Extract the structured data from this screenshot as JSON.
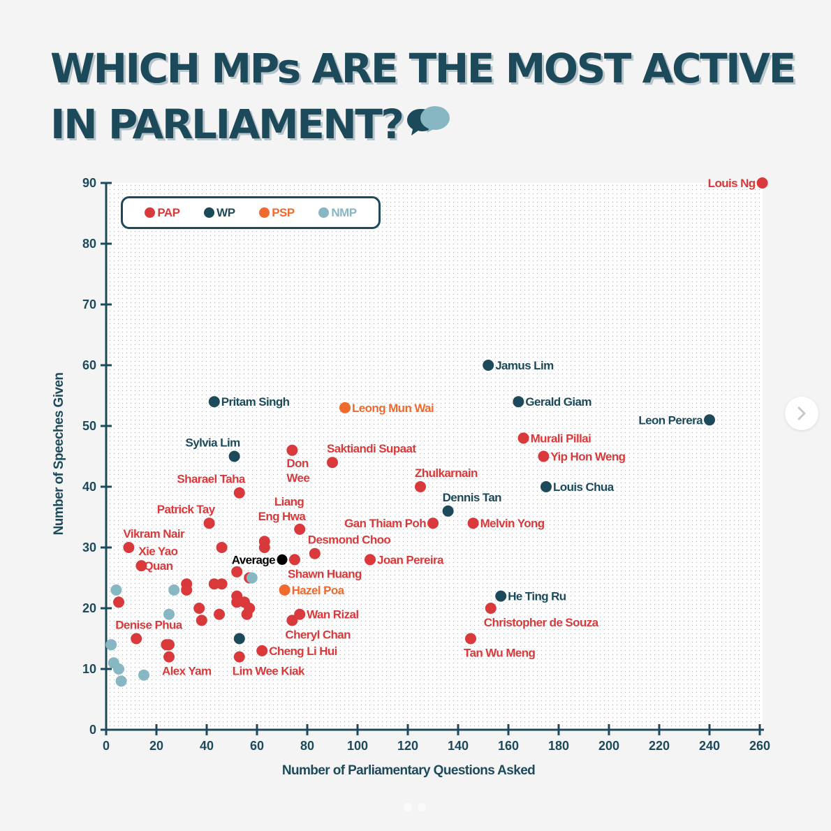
{
  "title": {
    "line1": "WHICH MPs ARE THE MOST ACTIVE",
    "line2": "IN PARLIAMENT?",
    "icon": "speech-bubbles-icon"
  },
  "colors": {
    "PAP": "#d9393a",
    "WP": "#1d4a5a",
    "PSP": "#f06a2e",
    "NMP": "#86b7c2",
    "Average": "#000000",
    "axis": "#1d4a5a",
    "grid": "#b9b9b9",
    "plot_bg": "#ffffff"
  },
  "navigation": {
    "next_icon": "chevron-right-icon",
    "carousel_pages": 2
  },
  "chart_data": {
    "type": "scatter",
    "title": "WHICH MPs ARE THE MOST ACTIVE IN PARLIAMENT?",
    "xlabel": "Number of Parliamentary Questions Asked",
    "ylabel": "Number of Speeches Given",
    "xlim": [
      0,
      260
    ],
    "ylim": [
      0,
      90
    ],
    "xticks": [
      0,
      20,
      40,
      60,
      80,
      100,
      120,
      140,
      160,
      180,
      200,
      220,
      240,
      260
    ],
    "yticks": [
      0,
      10,
      20,
      30,
      40,
      50,
      60,
      70,
      80,
      90
    ],
    "grid": true,
    "legend": {
      "placement": "top-left",
      "entries": [
        "PAP",
        "WP",
        "PSP",
        "NMP"
      ]
    },
    "points": [
      {
        "name": "Louis Ng",
        "party": "PAP",
        "x": 261,
        "y": 90,
        "label": "Louis Ng",
        "label_side": "left"
      },
      {
        "name": "Jamus Lim",
        "party": "WP",
        "x": 152,
        "y": 60,
        "label": "Jamus Lim",
        "label_side": "right"
      },
      {
        "name": "Gerald Giam",
        "party": "WP",
        "x": 164,
        "y": 54,
        "label": "Gerald Giam",
        "label_side": "right"
      },
      {
        "name": "Leon Perera",
        "party": "WP",
        "x": 240,
        "y": 51,
        "label": "Leon Perera",
        "label_side": "left"
      },
      {
        "name": "Murali Pillai",
        "party": "PAP",
        "x": 166,
        "y": 48,
        "label": "Murali Pillai",
        "label_side": "right"
      },
      {
        "name": "Yip Hon Weng",
        "party": "PAP",
        "x": 174,
        "y": 45,
        "label": "Yip Hon Weng",
        "label_side": "right"
      },
      {
        "name": "Louis Chua",
        "party": "WP",
        "x": 175,
        "y": 40,
        "label": "Louis Chua",
        "label_side": "right"
      },
      {
        "name": "Zhulkarnain",
        "party": "PAP",
        "x": 125,
        "y": 40,
        "label": "Zhulkarnain",
        "label_side": "above-right"
      },
      {
        "name": "Dennis Tan",
        "party": "WP",
        "x": 136,
        "y": 36,
        "label": "Dennis Tan",
        "label_side": "above-right"
      },
      {
        "name": "Gan Thiam Poh",
        "party": "PAP",
        "x": 130,
        "y": 34,
        "label": "Gan Thiam Poh",
        "label_side": "left"
      },
      {
        "name": "Melvin Yong",
        "party": "PAP",
        "x": 146,
        "y": 34,
        "label": "Melvin Yong",
        "label_side": "right"
      },
      {
        "name": "Joan Pereira",
        "party": "PAP",
        "x": 105,
        "y": 28,
        "label": "Joan Pereira",
        "label_side": "right"
      },
      {
        "name": "He Ting Ru",
        "party": "WP",
        "x": 157,
        "y": 22,
        "label": "He Ting Ru",
        "label_side": "right"
      },
      {
        "name": "Christopher de Souza",
        "party": "PAP",
        "x": 153,
        "y": 20,
        "label": "Christopher de Souza",
        "label_side": "below-right"
      },
      {
        "name": "Tan Wu Meng",
        "party": "PAP",
        "x": 145,
        "y": 15,
        "label": "Tan Wu Meng",
        "label_side": "below-right"
      },
      {
        "name": "Pritam Singh",
        "party": "WP",
        "x": 43,
        "y": 54,
        "label": "Pritam Singh",
        "label_side": "right"
      },
      {
        "name": "Leong Mun Wai",
        "party": "PSP",
        "x": 95,
        "y": 53,
        "label": "Leong Mun Wai",
        "label_side": "right"
      },
      {
        "name": "Sylvia Lim",
        "party": "WP",
        "x": 51,
        "y": 45,
        "label": "Sylvia Lim",
        "label_side": "above-left"
      },
      {
        "name": "Don Wee",
        "party": "PAP",
        "x": 74,
        "y": 46,
        "label": "Don Wee",
        "label_side": "below"
      },
      {
        "name": "Saktiandi Supaat",
        "party": "PAP",
        "x": 90,
        "y": 44,
        "label": "Saktiandi Supaat",
        "label_side": "above-right"
      },
      {
        "name": "Sharael Taha",
        "party": "PAP",
        "x": 53,
        "y": 39,
        "label": "Sharael Taha",
        "label_side": "above-left"
      },
      {
        "name": "Patrick Tay",
        "party": "PAP",
        "x": 41,
        "y": 34,
        "label": "Patrick Tay",
        "label_side": "above-left"
      },
      {
        "name": "Liang Eng Hwa",
        "party": "PAP",
        "x": 77,
        "y": 33,
        "label": "Liang Eng Hwa",
        "label_side": "above-left"
      },
      {
        "name": "Desmond Choo",
        "party": "PAP",
        "x": 83,
        "y": 29,
        "label": "Desmond Choo",
        "label_side": "above"
      },
      {
        "name": "Shawn Huang",
        "party": "PAP",
        "x": 75,
        "y": 28,
        "label": "Shawn Huang",
        "label_side": "below-right"
      },
      {
        "name": "Hazel Poa",
        "party": "PSP",
        "x": 71,
        "y": 23,
        "label": "Hazel Poa",
        "label_side": "right"
      },
      {
        "name": "Wan Rizal",
        "party": "PAP",
        "x": 77,
        "y": 19,
        "label": "Wan Rizal",
        "label_side": "right"
      },
      {
        "name": "Cheryl Chan",
        "party": "PAP",
        "x": 74,
        "y": 18,
        "label": "Cheryl Chan",
        "label_side": "below-right"
      },
      {
        "name": "Cheng Li Hui",
        "party": "PAP",
        "x": 62,
        "y": 13,
        "label": "Cheng Li Hui",
        "label_side": "right"
      },
      {
        "name": "Lim Wee Kiak",
        "party": "PAP",
        "x": 53,
        "y": 12,
        "label": "Lim Wee Kiak",
        "label_side": "below-right"
      },
      {
        "name": "Vikram Nair",
        "party": "PAP",
        "x": 9,
        "y": 30,
        "label": "Vikram Nair",
        "label_side": "above-right"
      },
      {
        "name": "Xie Yao Quan",
        "party": "PAP",
        "x": 14,
        "y": 27,
        "label": "Xie Yao Quan",
        "label_side": "right-2line"
      },
      {
        "name": "Denise Phua",
        "party": "PAP",
        "x": 12,
        "y": 15,
        "label": "Denise Phua",
        "label_side": "above-right"
      },
      {
        "name": "Alex Yam",
        "party": "PAP",
        "x": 25,
        "y": 12,
        "label": "Alex Yam",
        "label_side": "below-right"
      },
      {
        "name": "Average",
        "party": "Average",
        "x": 70,
        "y": 28,
        "label": "Average",
        "label_side": "left"
      },
      {
        "party": "PAP",
        "x": 46,
        "y": 30
      },
      {
        "party": "PAP",
        "x": 63,
        "y": 31
      },
      {
        "party": "PAP",
        "x": 63,
        "y": 30
      },
      {
        "party": "PAP",
        "x": 52,
        "y": 26
      },
      {
        "party": "PAP",
        "x": 57,
        "y": 25
      },
      {
        "party": "PAP",
        "x": 32,
        "y": 24
      },
      {
        "party": "PAP",
        "x": 32,
        "y": 23
      },
      {
        "party": "PAP",
        "x": 43,
        "y": 24
      },
      {
        "party": "PAP",
        "x": 46,
        "y": 24
      },
      {
        "party": "PAP",
        "x": 5,
        "y": 21
      },
      {
        "party": "PAP",
        "x": 37,
        "y": 20
      },
      {
        "party": "PAP",
        "x": 38,
        "y": 18
      },
      {
        "party": "PAP",
        "x": 45,
        "y": 19
      },
      {
        "party": "PAP",
        "x": 52,
        "y": 22
      },
      {
        "party": "PAP",
        "x": 52,
        "y": 21
      },
      {
        "party": "PAP",
        "x": 55,
        "y": 21
      },
      {
        "party": "PAP",
        "x": 57,
        "y": 20
      },
      {
        "party": "PAP",
        "x": 56,
        "y": 19
      },
      {
        "party": "PAP",
        "x": 24,
        "y": 14
      },
      {
        "party": "PAP",
        "x": 25,
        "y": 14
      },
      {
        "party": "NMP",
        "x": 58,
        "y": 25
      },
      {
        "party": "NMP",
        "x": 4,
        "y": 23
      },
      {
        "party": "NMP",
        "x": 27,
        "y": 23
      },
      {
        "party": "NMP",
        "x": 25,
        "y": 19
      },
      {
        "party": "NMP",
        "x": 2,
        "y": 14
      },
      {
        "party": "NMP",
        "x": 3,
        "y": 11
      },
      {
        "party": "NMP",
        "x": 5,
        "y": 10
      },
      {
        "party": "NMP",
        "x": 6,
        "y": 8
      },
      {
        "party": "NMP",
        "x": 15,
        "y": 9
      },
      {
        "party": "WP",
        "x": 53,
        "y": 15
      }
    ]
  }
}
